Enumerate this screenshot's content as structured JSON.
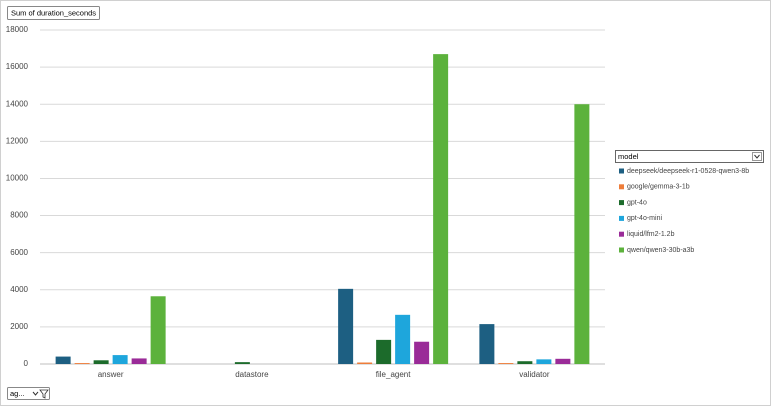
{
  "chart_data": {
    "type": "bar",
    "value_field": "Sum of duration_seconds",
    "axis_field": "ag...",
    "legend_title": "model",
    "categories": [
      "answer",
      "datastore",
      "file_agent",
      "validator"
    ],
    "series": [
      {
        "name": "deepseek/deepseek-r1-0528-qwen3-8b",
        "color": "#1d5f82",
        "values": [
          400,
          null,
          4050,
          2150
        ]
      },
      {
        "name": "google/gemma-3-1b",
        "color": "#ee7d3a",
        "values": [
          50,
          null,
          80,
          50
        ]
      },
      {
        "name": "gpt-4o",
        "color": "#1c6b2b",
        "values": [
          200,
          100,
          1300,
          150
        ]
      },
      {
        "name": "gpt-4o-mini",
        "color": "#1ea6dc",
        "values": [
          480,
          null,
          2650,
          250
        ]
      },
      {
        "name": "liquid/lfm2-1.2b",
        "color": "#9a2b98",
        "values": [
          300,
          null,
          1200,
          280
        ]
      },
      {
        "name": "qwen/qwen3-30b-a3b",
        "color": "#5cb23c",
        "values": [
          3650,
          null,
          16700,
          14000
        ]
      }
    ],
    "ylim": [
      0,
      18000
    ],
    "yticks": [
      0,
      2000,
      4000,
      6000,
      8000,
      10000,
      12000,
      14000,
      16000,
      18000
    ],
    "grid": true
  }
}
